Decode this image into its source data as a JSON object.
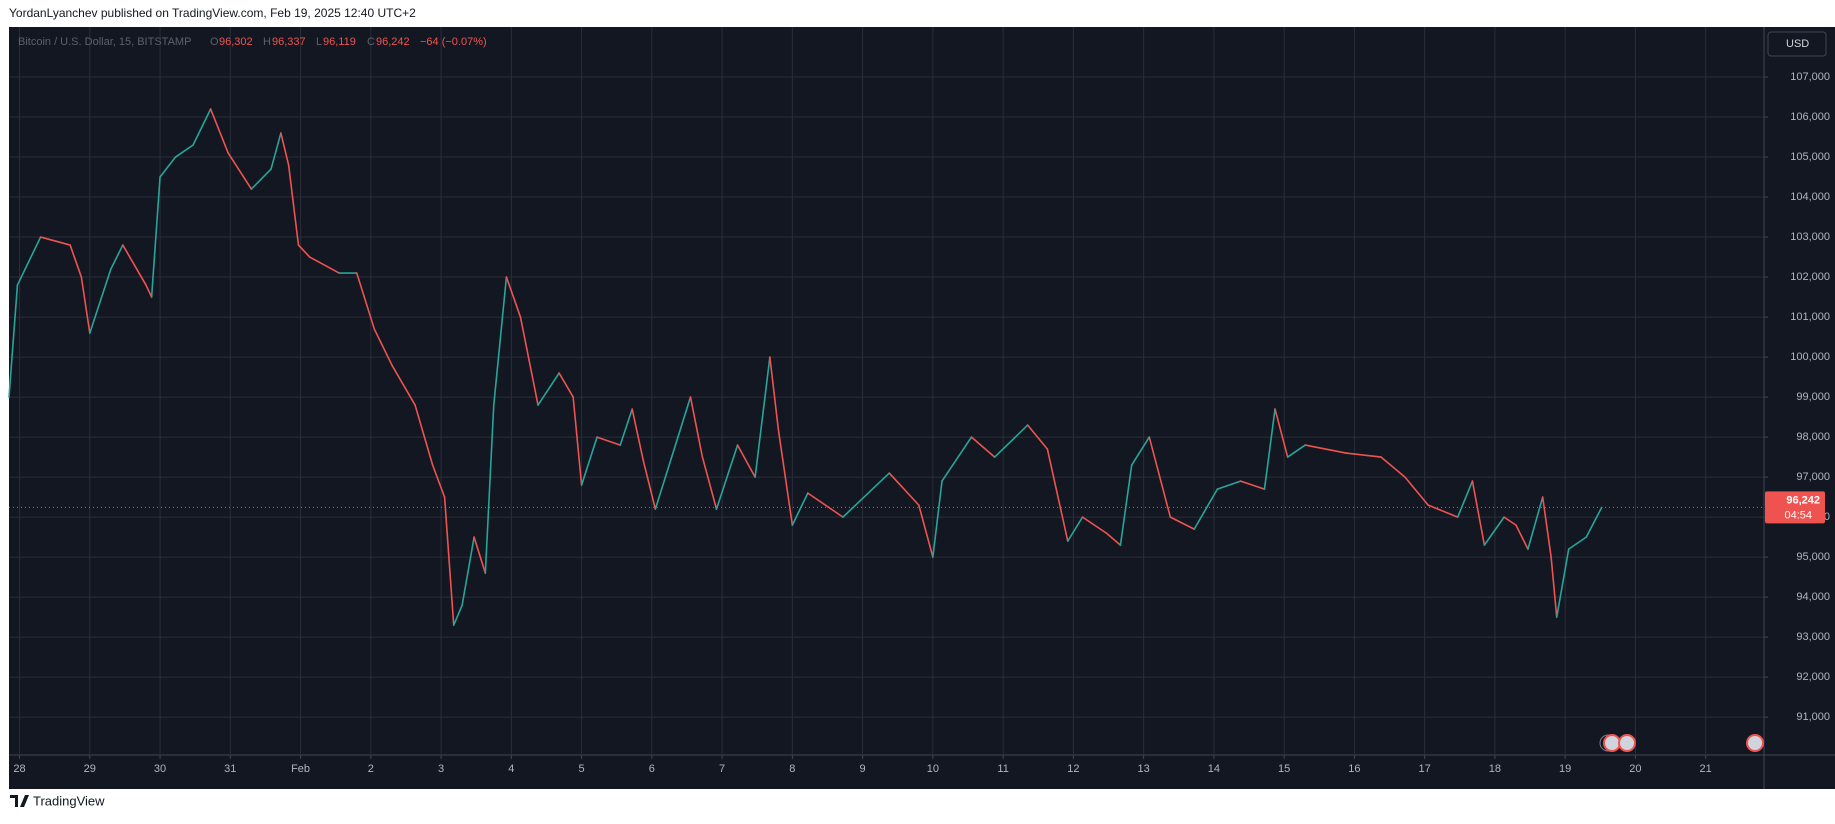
{
  "header": "YordanLyanchev published on TradingView.com, Feb 19, 2025 12:40 UTC+2",
  "footer": "TradingView",
  "currency_button": "USD",
  "legend": {
    "symbol": "Bitcoin / U.S. Dollar, 15, BITSTAMP",
    "open_label": "O",
    "open": "96,302",
    "high_label": "H",
    "high": "96,337",
    "low_label": "L",
    "low": "96,119",
    "close_label": "C",
    "close": "96,242",
    "change": "−64 (−0.07%)"
  },
  "price_tag": {
    "price": "96,242",
    "countdown": "04:54"
  },
  "chart_data": {
    "type": "line",
    "grid": true,
    "up_color": "#26a69a",
    "down_color": "#ef5350",
    "current_price": 96242,
    "xlim": [
      -0.15,
      24.83
    ],
    "ylim": [
      90054,
      108250
    ],
    "xticks": [
      {
        "value": 0,
        "label": "28"
      },
      {
        "value": 1,
        "label": "29"
      },
      {
        "value": 2,
        "label": "30"
      },
      {
        "value": 3,
        "label": "31"
      },
      {
        "value": 4,
        "label": "Feb"
      },
      {
        "value": 5,
        "label": "2"
      },
      {
        "value": 6,
        "label": "3"
      },
      {
        "value": 7,
        "label": "4"
      },
      {
        "value": 8,
        "label": "5"
      },
      {
        "value": 9,
        "label": "6"
      },
      {
        "value": 10,
        "label": "7"
      },
      {
        "value": 11,
        "label": "8"
      },
      {
        "value": 12,
        "label": "9"
      },
      {
        "value": 13,
        "label": "10"
      },
      {
        "value": 14,
        "label": "11"
      },
      {
        "value": 15,
        "label": "12"
      },
      {
        "value": 16,
        "label": "13"
      },
      {
        "value": 17,
        "label": "14"
      },
      {
        "value": 18,
        "label": "15"
      },
      {
        "value": 19,
        "label": "16"
      },
      {
        "value": 20,
        "label": "17"
      },
      {
        "value": 21,
        "label": "18"
      },
      {
        "value": 22,
        "label": "19"
      },
      {
        "value": 23,
        "label": "20"
      },
      {
        "value": 24,
        "label": "21"
      }
    ],
    "yticks": [
      {
        "value": 91000,
        "label": "91,000"
      },
      {
        "value": 92000,
        "label": "92,000"
      },
      {
        "value": 93000,
        "label": "93,000"
      },
      {
        "value": 94000,
        "label": "94,000"
      },
      {
        "value": 95000,
        "label": "95,000"
      },
      {
        "value": 96000,
        "label": "96,000"
      },
      {
        "value": 97000,
        "label": "97,000"
      },
      {
        "value": 98000,
        "label": "98,000"
      },
      {
        "value": 99000,
        "label": "99,000"
      },
      {
        "value": 100000,
        "label": "100,000"
      },
      {
        "value": 101000,
        "label": "101,000"
      },
      {
        "value": 102000,
        "label": "102,000"
      },
      {
        "value": 103000,
        "label": "103,000"
      },
      {
        "value": 104000,
        "label": "104,000"
      },
      {
        "value": 105000,
        "label": "105,000"
      },
      {
        "value": 106000,
        "label": "106,000"
      },
      {
        "value": 107000,
        "label": "107,000"
      }
    ],
    "x": [
      -0.15,
      -0.03,
      0.3,
      0.72,
      0.88,
      1.0,
      1.3,
      1.47,
      1.8,
      1.88,
      2.0,
      2.22,
      2.47,
      2.72,
      2.97,
      3.3,
      3.58,
      3.72,
      3.83,
      3.97,
      4.13,
      4.55,
      4.8,
      5.05,
      5.3,
      5.63,
      5.88,
      6.05,
      6.18,
      6.3,
      6.47,
      6.63,
      6.75,
      6.93,
      7.13,
      7.38,
      7.68,
      7.88,
      8.0,
      8.22,
      8.55,
      8.72,
      8.88,
      9.05,
      9.55,
      9.72,
      9.92,
      10.22,
      10.47,
      10.68,
      10.8,
      11.0,
      11.22,
      11.72,
      12.38,
      12.8,
      13.0,
      13.13,
      13.55,
      13.88,
      14.35,
      14.63,
      14.92,
      15.13,
      15.47,
      15.67,
      15.83,
      16.08,
      16.38,
      16.72,
      17.05,
      17.38,
      17.72,
      17.87,
      18.05,
      18.3,
      18.88,
      19.38,
      19.72,
      20.05,
      20.47,
      20.68,
      20.85,
      21.13,
      21.3,
      21.47,
      21.68,
      21.8,
      21.88,
      22.05,
      22.3,
      22.52
    ],
    "values": [
      99000,
      101800,
      103000,
      102800,
      102000,
      100600,
      102200,
      102800,
      101800,
      101500,
      104500,
      105000,
      105300,
      106200,
      105100,
      104200,
      104700,
      105600,
      104800,
      102800,
      102500,
      102100,
      102100,
      100700,
      99800,
      98800,
      97300,
      96500,
      93300,
      93800,
      95500,
      94600,
      98800,
      102000,
      101000,
      98800,
      99600,
      99000,
      96800,
      98000,
      97800,
      98700,
      97400,
      96200,
      99000,
      97500,
      96200,
      97800,
      97000,
      100000,
      98200,
      95800,
      96600,
      96000,
      97100,
      96300,
      95000,
      96900,
      98000,
      97500,
      98300,
      97700,
      95400,
      96000,
      95600,
      95300,
      97300,
      98000,
      96000,
      95700,
      96700,
      96900,
      96700,
      98700,
      97500,
      97800,
      97600,
      97500,
      97000,
      96300,
      96000,
      96900,
      95300,
      96000,
      95800,
      95200,
      96500,
      95000,
      93500,
      95200,
      95500,
      96242
    ]
  }
}
